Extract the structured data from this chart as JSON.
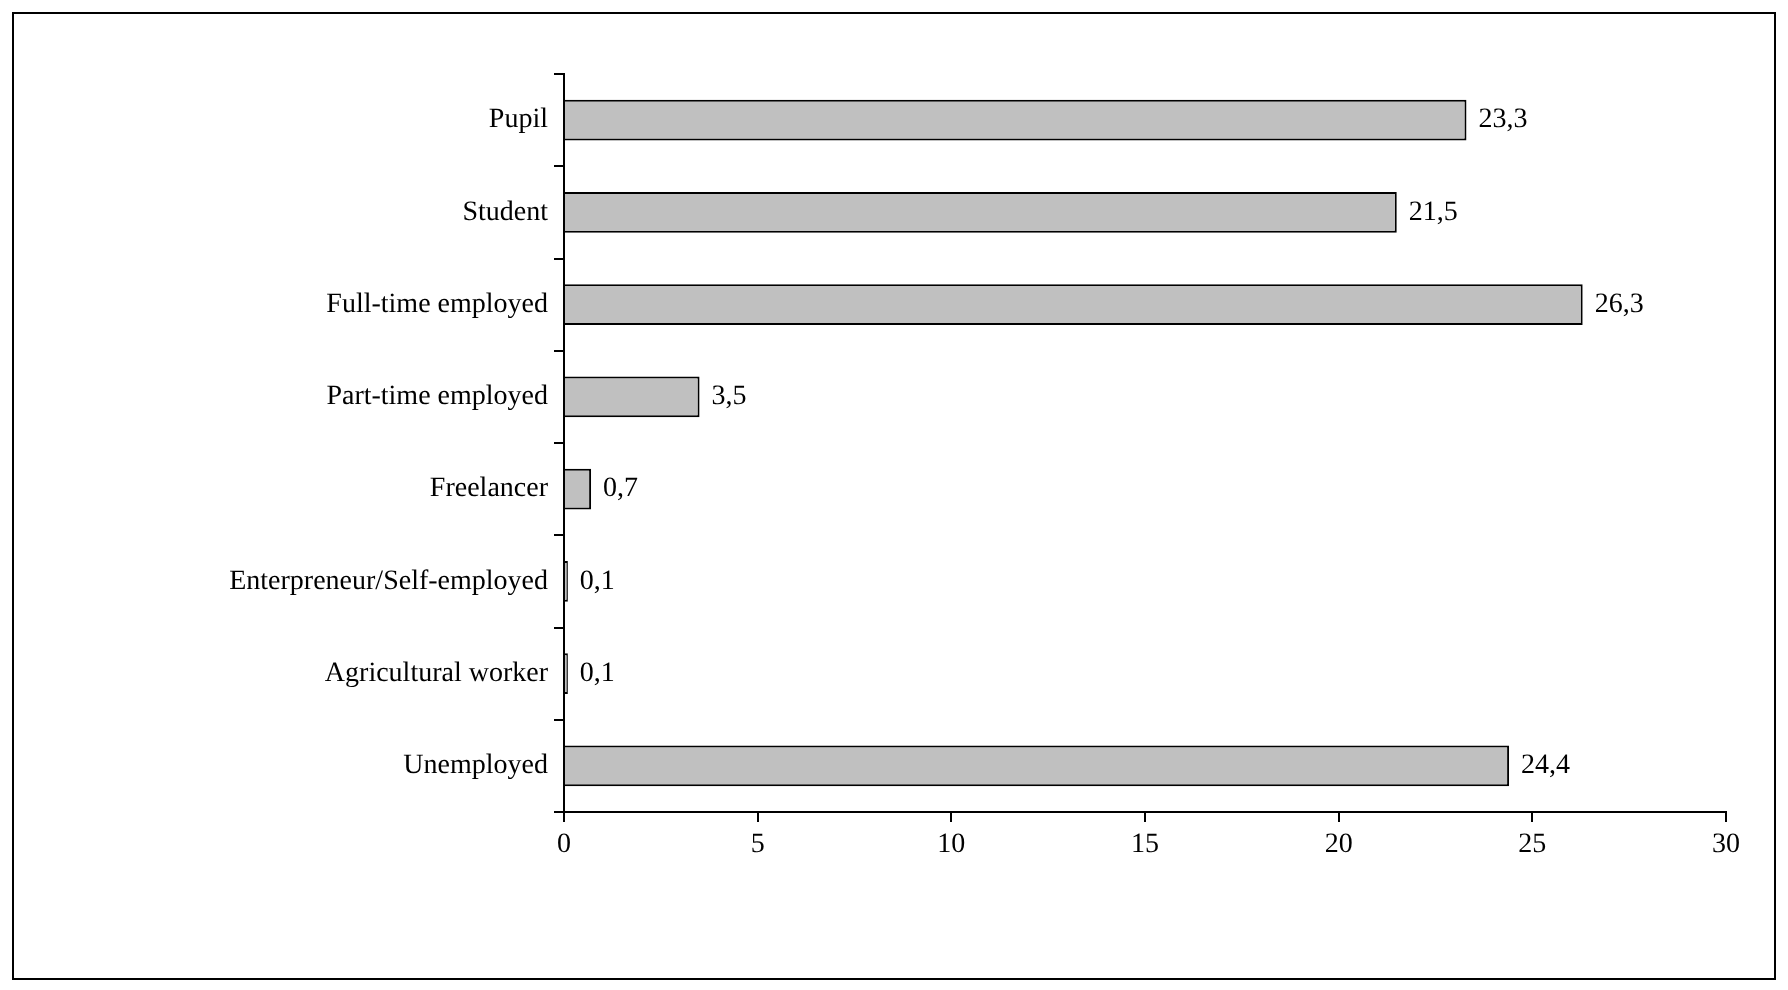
{
  "chart_data": {
    "type": "bar",
    "orientation": "horizontal",
    "categories": [
      "Pupil",
      "Student",
      "Full-time employed",
      "Part-time employed",
      "Freelancer",
      "Enterpreneur/Self-employed",
      "Agricultural worker",
      "Unemployed"
    ],
    "values": [
      23.3,
      21.5,
      26.3,
      3.5,
      0.7,
      0.1,
      0.1,
      24.4
    ],
    "value_labels": [
      "23,3",
      "21,5",
      "26,3",
      "3,5",
      "0,7",
      "0,1",
      "0,1",
      "24,4"
    ],
    "color": "#c0c0c0",
    "xlim": [
      0,
      30
    ],
    "xticks": [
      0,
      5,
      10,
      15,
      20,
      25,
      30
    ],
    "grid": false,
    "legend": false
  }
}
